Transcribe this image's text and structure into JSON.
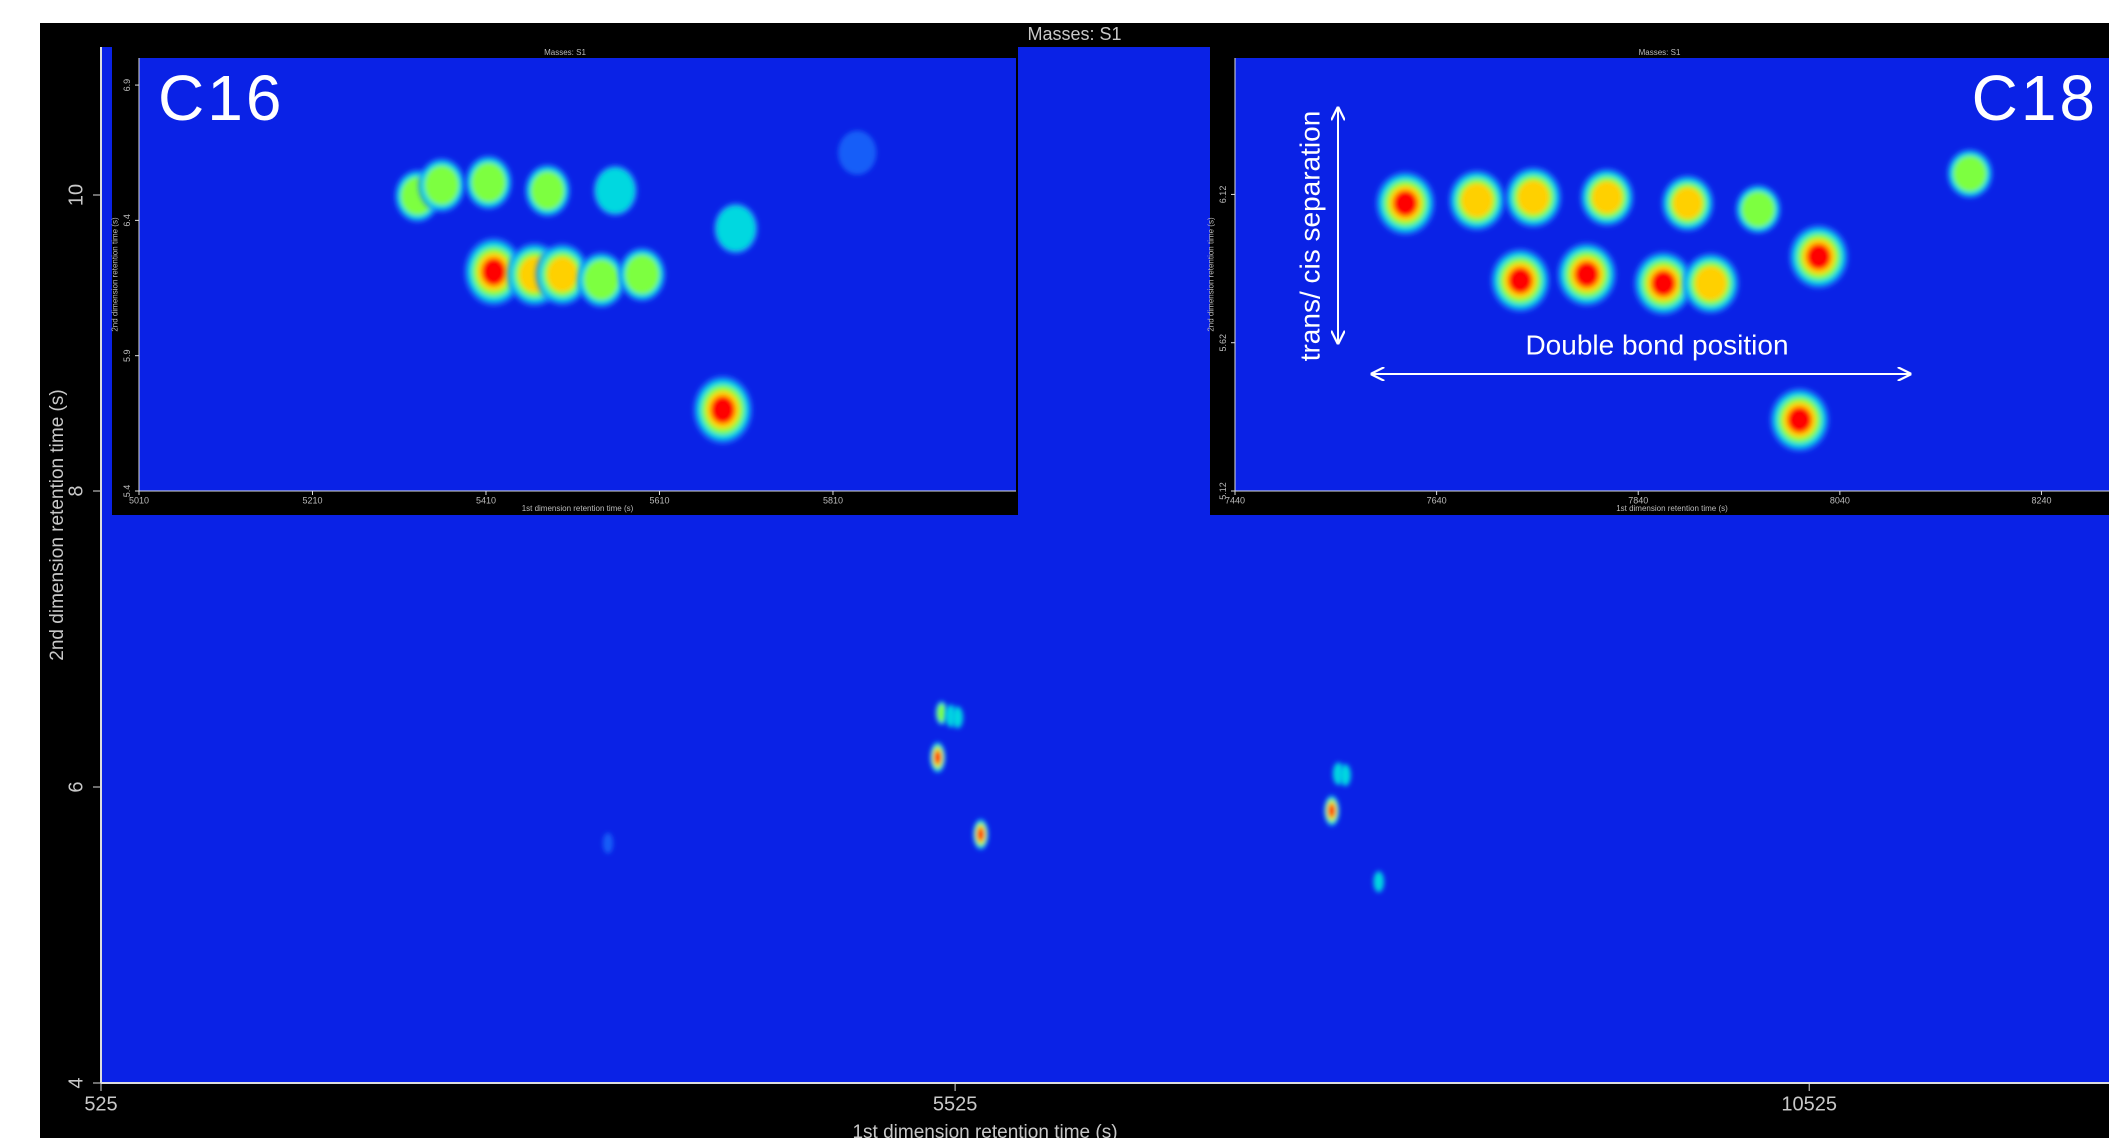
{
  "chart_data": [
    {
      "type": "heatmap",
      "title": "Masses: S1",
      "xlabel": "1st dimension retention time (s)",
      "ylabel": "2nd dimension retention time (s)",
      "xlim": [
        525,
        12280
      ],
      "ylim": [
        4,
        11
      ],
      "xticks": [
        525,
        5525,
        10525
      ],
      "yticks": [
        4,
        6,
        8,
        10
      ],
      "background": "#0a22e6",
      "x": [
        5423,
        5675,
        5446,
        5500,
        5540,
        7730,
        7769,
        7810,
        8005,
        3493
      ],
      "values": [
        6.2,
        5.68,
        6.5,
        6.48,
        6.47,
        5.84,
        6.09,
        6.08,
        5.36,
        5.62
      ],
      "intensity": [
        1,
        1,
        0.5,
        0.45,
        0.4,
        1,
        0.45,
        0.4,
        0.35,
        0.2
      ]
    },
    {
      "type": "heatmap",
      "title": "Masses: S1",
      "label": "C16",
      "xlabel": "1st dimension retention time (s)",
      "ylabel": "2nd dimension retention time (s)",
      "xlim": [
        5010,
        6021
      ],
      "ylim": [
        5.4,
        7.0
      ],
      "xticks": [
        5010,
        5210,
        5410,
        5610,
        5810
      ],
      "yticks": [
        5.4,
        5.9,
        6.4,
        6.9
      ],
      "background": "#0a22e6",
      "x": [
        5419,
        5466,
        5498,
        5543,
        5590,
        5331,
        5359,
        5413,
        5481,
        5559,
        5698,
        5683,
        5838
      ],
      "values": [
        6.21,
        6.2,
        6.2,
        6.18,
        6.2,
        6.49,
        6.53,
        6.54,
        6.51,
        6.51,
        6.37,
        5.7,
        6.65
      ],
      "intensity": [
        1,
        0.85,
        0.8,
        0.6,
        0.55,
        0.5,
        0.55,
        0.55,
        0.5,
        0.45,
        0.45,
        1,
        0.2
      ]
    },
    {
      "type": "heatmap",
      "title": "Masses: S1",
      "label": "C18",
      "xlabel": "1st dimension retention time (s)",
      "ylabel": "2nd dimension retention time (s)",
      "xlim": [
        7440,
        8307
      ],
      "ylim": [
        5.12,
        6.58
      ],
      "xticks": [
        7440,
        7640,
        7840,
        8040,
        8240
      ],
      "yticks": [
        5.12,
        5.62,
        6.12
      ],
      "background": "#0a22e6",
      "annotations": [
        "trans/ cis separation",
        "Double bond position"
      ],
      "x": [
        7609,
        7680,
        7736,
        7809,
        7889,
        7959,
        8169,
        8019,
        7723,
        7789,
        7865,
        7912,
        8000
      ],
      "values": [
        6.09,
        6.1,
        6.11,
        6.11,
        6.09,
        6.07,
        6.19,
        5.91,
        5.83,
        5.85,
        5.82,
        5.82,
        5.36
      ],
      "intensity": [
        1,
        0.9,
        0.9,
        0.8,
        0.75,
        0.5,
        0.5,
        1,
        1,
        1,
        1,
        0.9,
        1
      ]
    }
  ]
}
